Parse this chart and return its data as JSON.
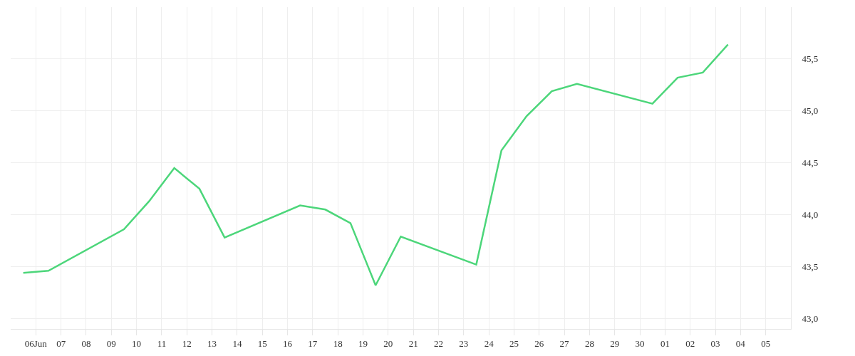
{
  "chart_data": {
    "type": "line",
    "x": [
      "--06-05T12:00",
      "--06-06T12:00",
      "--06-09T12:00",
      "--06-10T12:00",
      "--06-11T12:00",
      "--06-12T12:00",
      "--06-13T12:00",
      "--06-16T12:00",
      "--06-17T12:00",
      "--06-18T12:00",
      "--06-19T12:00",
      "--06-20T12:00",
      "--06-23T12:00",
      "--06-24T12:00",
      "--06-25T12:00",
      "--06-26T12:00",
      "--06-27T12:00",
      "--06-30T12:00",
      "--07-01T12:00",
      "--07-02T12:00",
      "--07-03T12:00"
    ],
    "series": [
      {
        "color": "#4cd67a",
        "values": [
          43.44,
          43.46,
          43.86,
          44.13,
          44.45,
          44.25,
          43.78,
          44.09,
          44.05,
          43.92,
          43.32,
          43.79,
          43.52,
          44.62,
          44.95,
          45.19,
          45.26,
          45.07,
          45.32,
          45.37,
          45.64
        ]
      }
    ],
    "xlim": [
      "--06-05",
      "--07-06"
    ],
    "xticks": [
      {
        "value": "--06-06",
        "label": "06Jun"
      },
      {
        "value": "--06-07",
        "label": "07"
      },
      {
        "value": "--06-08",
        "label": "08"
      },
      {
        "value": "--06-09",
        "label": "09"
      },
      {
        "value": "--06-10",
        "label": "10"
      },
      {
        "value": "--06-11",
        "label": "11"
      },
      {
        "value": "--06-12",
        "label": "12"
      },
      {
        "value": "--06-13",
        "label": "13"
      },
      {
        "value": "--06-14",
        "label": "14"
      },
      {
        "value": "--06-15",
        "label": "15"
      },
      {
        "value": "--06-16",
        "label": "16"
      },
      {
        "value": "--06-17",
        "label": "17"
      },
      {
        "value": "--06-18",
        "label": "18"
      },
      {
        "value": "--06-19",
        "label": "19"
      },
      {
        "value": "--06-20",
        "label": "20"
      },
      {
        "value": "--06-21",
        "label": "21"
      },
      {
        "value": "--06-22",
        "label": "22"
      },
      {
        "value": "--06-23",
        "label": "23"
      },
      {
        "value": "--06-24",
        "label": "24"
      },
      {
        "value": "--06-25",
        "label": "25"
      },
      {
        "value": "--06-26",
        "label": "26"
      },
      {
        "value": "--06-27",
        "label": "27"
      },
      {
        "value": "--06-28",
        "label": "28"
      },
      {
        "value": "--06-29",
        "label": "29"
      },
      {
        "value": "--06-30",
        "label": "30"
      },
      {
        "value": "--07-01",
        "label": "01"
      },
      {
        "value": "--07-02",
        "label": "02"
      },
      {
        "value": "--07-03",
        "label": "03"
      },
      {
        "value": "--07-04",
        "label": "04"
      },
      {
        "value": "--07-05",
        "label": "05"
      }
    ],
    "ylim": [
      42.9,
      46.0
    ],
    "yticks": [
      {
        "value": 43.0,
        "label": "43,0"
      },
      {
        "value": 43.5,
        "label": "43,5"
      },
      {
        "value": 44.0,
        "label": "44,0"
      },
      {
        "value": 44.5,
        "label": "44,5"
      },
      {
        "value": 45.0,
        "label": "45,0"
      },
      {
        "value": 45.5,
        "label": "45,5"
      }
    ],
    "grid": true,
    "legend": false,
    "marker": "none",
    "line_style": "solid"
  }
}
